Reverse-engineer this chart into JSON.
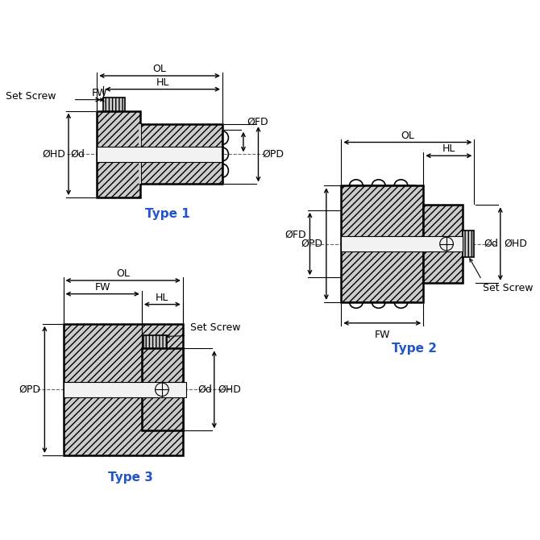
{
  "bg_color": "#ffffff",
  "line_color": "#000000",
  "type_color": "#2255cc",
  "font_size_label": 9,
  "font_size_type": 11,
  "type1_label": "Type 1",
  "type2_label": "Type 2",
  "type3_label": "Type 3",
  "hatch_fill": "#cccccc",
  "bore_fill": "#e8e8e8",
  "white_fill": "#ffffff"
}
